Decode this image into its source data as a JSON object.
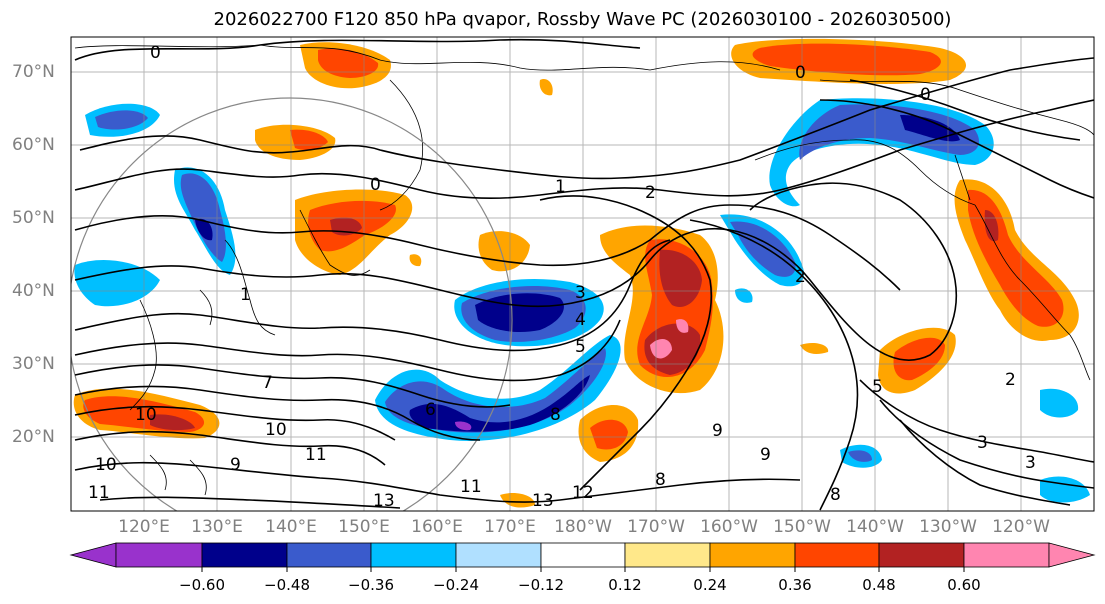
{
  "title": "2026022700 F120 850 hPa qvapor, Rossby Wave PC (2026030100 - 2026030500)",
  "lat_labels": [
    "70°N",
    "60°N",
    "50°N",
    "40°N",
    "30°N",
    "20°N"
  ],
  "lon_labels": [
    "120°E",
    "130°E",
    "140°E",
    "150°E",
    "160°E",
    "170°E",
    "180°W",
    "170°W",
    "160°W",
    "150°W",
    "140°W",
    "130°W",
    "120°W"
  ],
  "colorbar": {
    "colors": [
      "#9932cc",
      "#00008b",
      "#3a5bcc",
      "#00bfff",
      "#b0e0ff",
      "#ffffff",
      "#ffe88a",
      "#ffa500",
      "#ff4500",
      "#b22222",
      "#ff85b0"
    ],
    "tick_labels": [
      "−0.60",
      "−0.48",
      "−0.36",
      "−0.24",
      "−0.12",
      "0.12",
      "0.24",
      "0.36",
      "0.48",
      "0.60"
    ]
  },
  "contour_labels": [
    "0",
    "0",
    "0",
    "0",
    "1",
    "2",
    "1",
    "2",
    "3",
    "4",
    "5",
    "5",
    "6",
    "7",
    "8",
    "9",
    "10",
    "10",
    "11",
    "11",
    "11",
    "12",
    "13",
    "13",
    "2",
    "3",
    "8",
    "9",
    "3",
    "9",
    "10",
    "8"
  ]
}
